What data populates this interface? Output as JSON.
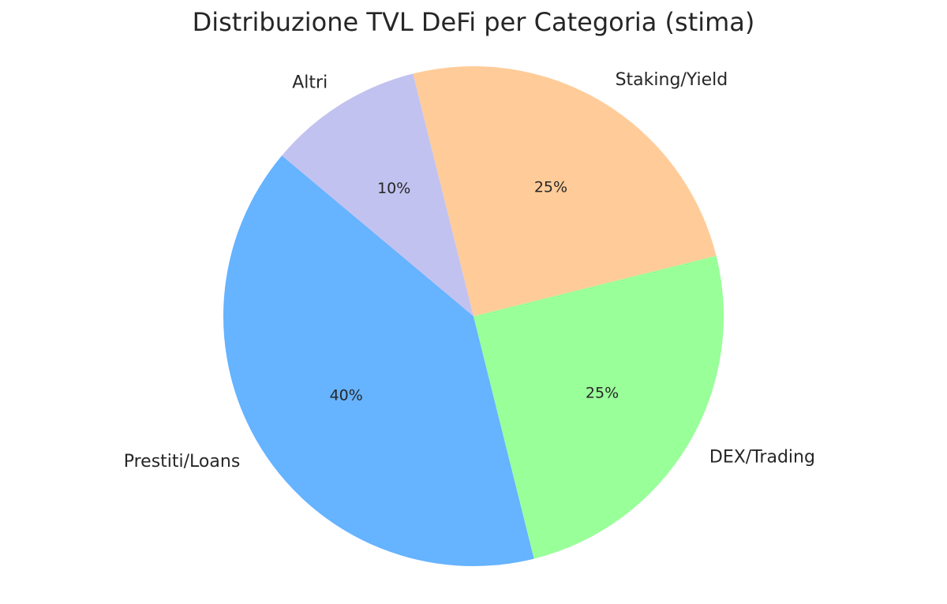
{
  "chart_data": {
    "type": "pie",
    "title": "Distribuzione TVL DeFi per Categoria (stima)",
    "categories": [
      "Prestiti/Loans",
      "DEX/Trading",
      "Staking/Yield",
      "Altri"
    ],
    "values": [
      40,
      25,
      25,
      10
    ],
    "value_labels": [
      "40%",
      "25%",
      "25%",
      "10%"
    ],
    "colors": [
      "#66b3ff",
      "#99ff99",
      "#ffcc99",
      "#c2c2f0"
    ]
  }
}
